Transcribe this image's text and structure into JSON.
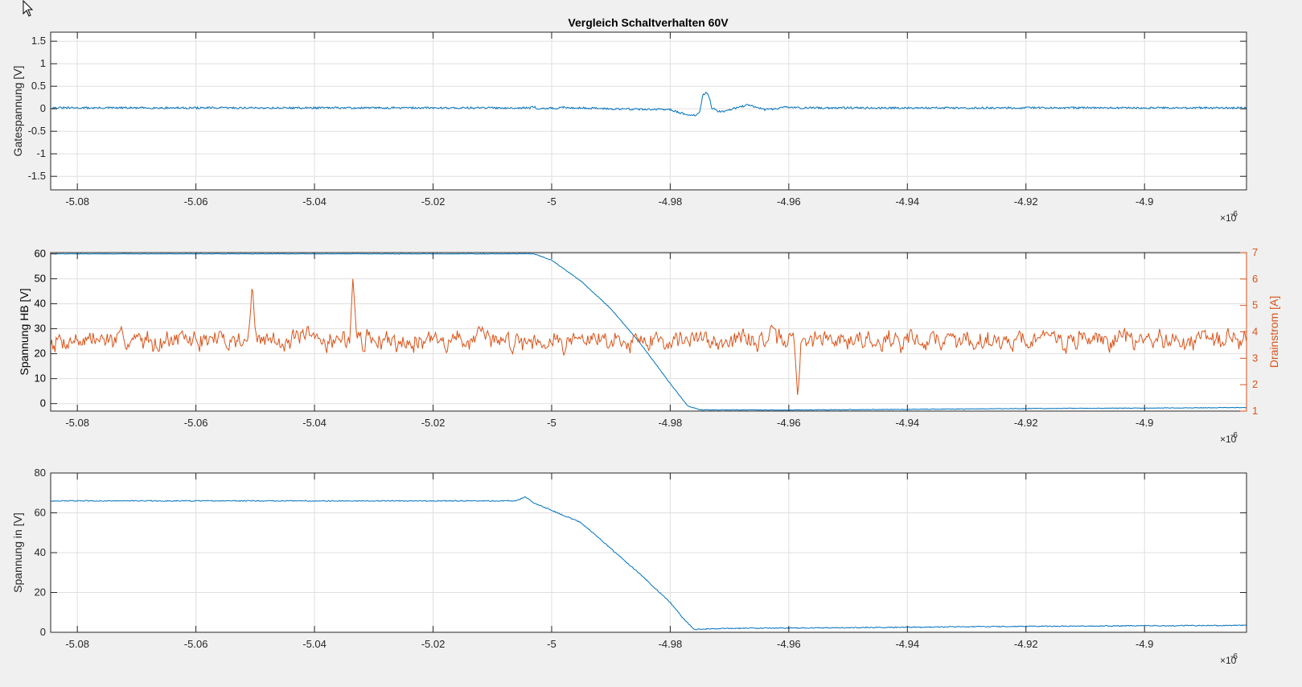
{
  "figure": {
    "title": "Vergleich Schaltverhalten 60V"
  },
  "colors": {
    "blue": "#0072BD",
    "orange": "#D95319",
    "axis": "#262626",
    "grid": "#dfdfdf",
    "plot_bg": "#ffffff",
    "fig_bg": "#f0f0f0"
  },
  "chart_data": [
    {
      "type": "line",
      "title": "Vergleich Schaltverhalten 60V",
      "xlabel": "",
      "ylabel": "Gatespannung [V]",
      "xlim": [
        -5.0845e-06,
        -4.8828e-06
      ],
      "ylim": [
        -1.8,
        1.7
      ],
      "x_ticks": [
        -5.08,
        -5.06,
        -5.04,
        -5.02,
        -5,
        -4.98,
        -4.96,
        -4.94,
        -4.92,
        -4.9
      ],
      "x_tick_labels": [
        "-5.08",
        "-5.06",
        "-5.04",
        "-5.02",
        "-5",
        "-4.98",
        "-4.96",
        "-4.94",
        "-4.92",
        "-4.9"
      ],
      "x_exponent_label": "×10",
      "x_exponent_power": "-6",
      "y_ticks": [
        -1.5,
        -1,
        -0.5,
        0,
        0.5,
        1,
        1.5
      ],
      "y_tick_labels": [
        "-1.5",
        "-1",
        "-0.5",
        "0",
        "0.5",
        "1",
        "1.5"
      ],
      "grid": true,
      "series": [
        {
          "color": "#0072BD",
          "noise": 0.022,
          "points": [
            [
              -5.0845,
              0.02
            ],
            [
              -5.0035,
              0.02
            ],
            [
              -5.003,
              0.05
            ],
            [
              -5.0025,
              0.01
            ],
            [
              -4.999,
              0.01
            ],
            [
              -4.998,
              0.03
            ],
            [
              -4.99,
              0.0
            ],
            [
              -4.98,
              -0.02
            ],
            [
              -4.9775,
              -0.12
            ],
            [
              -4.9755,
              -0.15
            ],
            [
              -4.975,
              -0.05
            ],
            [
              -4.9745,
              0.3
            ],
            [
              -4.974,
              0.36
            ],
            [
              -4.9735,
              0.3
            ],
            [
              -4.973,
              0.02
            ],
            [
              -4.972,
              -0.05
            ],
            [
              -4.971,
              -0.06
            ],
            [
              -4.9695,
              0.0
            ],
            [
              -4.967,
              0.08
            ],
            [
              -4.9655,
              0.04
            ],
            [
              -4.964,
              -0.02
            ],
            [
              -4.962,
              0.0
            ],
            [
              -4.961,
              0.04
            ],
            [
              -4.958,
              0.02
            ],
            [
              -4.95,
              0.02
            ],
            [
              -4.8828,
              0.02
            ]
          ]
        }
      ]
    },
    {
      "type": "line",
      "title": "",
      "xlabel": "",
      "ylabel": "Spannung HB [V]",
      "y2label": "Drainstrom [A]",
      "xlim": [
        -5.0845e-06,
        -4.8828e-06
      ],
      "ylim": [
        -3,
        60.5
      ],
      "y2lim": [
        1,
        7
      ],
      "x_ticks": [
        -5.08,
        -5.06,
        -5.04,
        -5.02,
        -5,
        -4.98,
        -4.96,
        -4.94,
        -4.92,
        -4.9
      ],
      "x_tick_labels": [
        "-5.08",
        "-5.06",
        "-5.04",
        "-5.02",
        "-5",
        "-4.98",
        "-4.96",
        "-4.94",
        "-4.92",
        "-4.9"
      ],
      "x_exponent_label": "×10",
      "x_exponent_power": "-6",
      "y_ticks": [
        0,
        10,
        20,
        30,
        40,
        50,
        60
      ],
      "y_tick_labels": [
        "0",
        "10",
        "20",
        "30",
        "40",
        "50",
        "60"
      ],
      "y2_ticks": [
        1,
        2,
        3,
        4,
        5,
        6,
        7
      ],
      "y2_tick_labels": [
        "1",
        "2",
        "3",
        "4",
        "5",
        "6",
        "7"
      ],
      "grid": true,
      "series": [
        {
          "axis": "left",
          "color": "#0072BD",
          "noise": 0.12,
          "points": [
            [
              -5.0845,
              60
            ],
            [
              -5.003,
              60
            ],
            [
              -5.0,
              57.5
            ],
            [
              -4.995,
              49
            ],
            [
              -4.99,
              38
            ],
            [
              -4.985,
              24
            ],
            [
              -4.98,
              8
            ],
            [
              -4.977,
              -1
            ],
            [
              -4.975,
              -2.5
            ],
            [
              -4.96,
              -2.6
            ],
            [
              -4.94,
              -2.3
            ],
            [
              -4.92,
              -2.0
            ],
            [
              -4.8828,
              -1.6
            ]
          ]
        },
        {
          "axis": "right",
          "color": "#D95319",
          "random": {
            "mean": 3.7,
            "amplitude": 0.55,
            "seed": 7,
            "spikes": [
              [
                -5.0505,
                5.9
              ],
              [
                -5.0335,
                6.1
              ],
              [
                -4.9585,
                1.5
              ]
            ]
          }
        }
      ]
    },
    {
      "type": "line",
      "title": "",
      "xlabel": "",
      "ylabel": "Spannung in [V]",
      "xlim": [
        -5.0845e-06,
        -4.8828e-06
      ],
      "ylim": [
        0,
        80
      ],
      "x_ticks": [
        -5.08,
        -5.06,
        -5.04,
        -5.02,
        -5,
        -4.98,
        -4.96,
        -4.94,
        -4.92,
        -4.9
      ],
      "x_tick_labels": [
        "-5.08",
        "-5.06",
        "-5.04",
        "-5.02",
        "-5",
        "-4.98",
        "-4.96",
        "-4.94",
        "-4.92",
        "-4.9"
      ],
      "x_exponent_label": "×10",
      "x_exponent_power": "-6",
      "y_ticks": [
        0,
        20,
        40,
        60,
        80
      ],
      "y_tick_labels": [
        "0",
        "20",
        "40",
        "60",
        "80"
      ],
      "grid": true,
      "series": [
        {
          "color": "#0072BD",
          "noise": 0.25,
          "points": [
            [
              -5.0845,
              66
            ],
            [
              -5.006,
              66
            ],
            [
              -5.0045,
              68
            ],
            [
              -5.003,
              65
            ],
            [
              -4.999,
              60
            ],
            [
              -4.995,
              55
            ],
            [
              -4.99,
              42
            ],
            [
              -4.985,
              29
            ],
            [
              -4.98,
              15
            ],
            [
              -4.9775,
              6
            ],
            [
              -4.976,
              1.5
            ],
            [
              -4.97,
              2
            ],
            [
              -4.95,
              2.3
            ],
            [
              -4.92,
              3.0
            ],
            [
              -4.8828,
              3.5
            ]
          ]
        }
      ]
    }
  ]
}
